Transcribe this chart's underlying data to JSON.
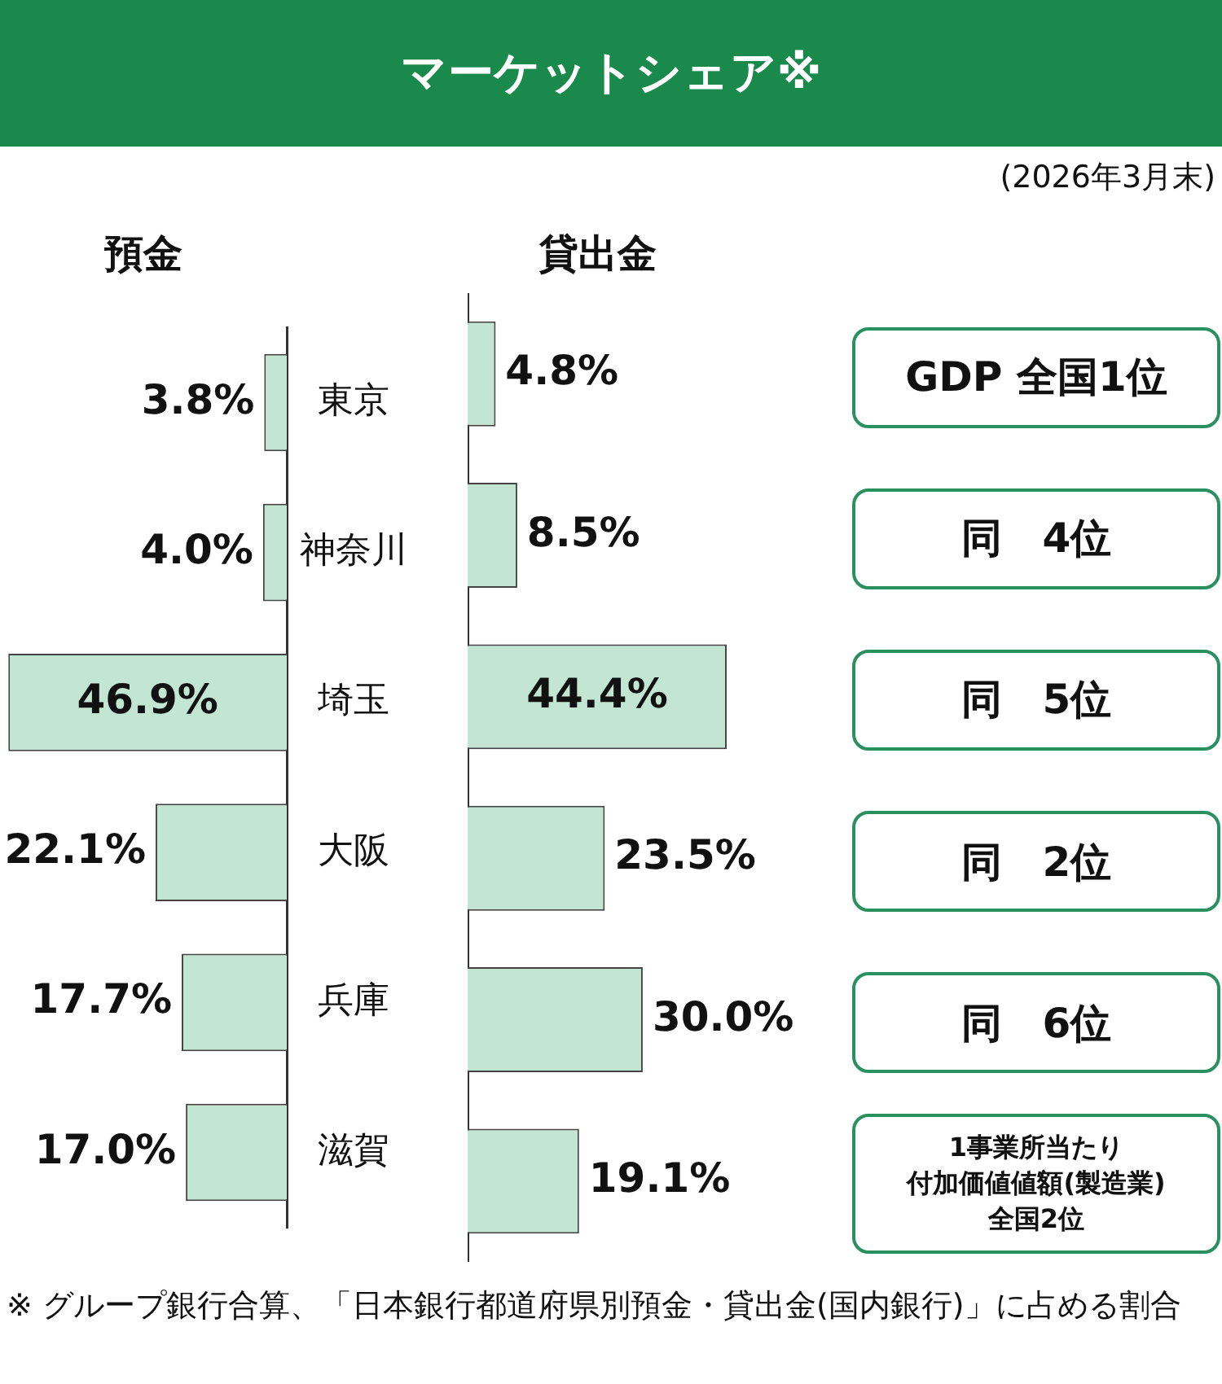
{
  "chart_data": [
    {
      "type": "bar",
      "orientation": "horizontal",
      "title": "預金",
      "categories": [
        "東京",
        "神奈川",
        "埼玉",
        "大阪",
        "兵庫",
        "滋賀"
      ],
      "values": [
        3.8,
        4.0,
        46.9,
        22.1,
        17.7,
        17.0
      ],
      "value_labels": [
        "3.8%",
        "4.0%",
        "46.9%",
        "22.1%",
        "17.7%",
        "17.0%"
      ],
      "color": "#c2e6d3",
      "tick_labels": "y",
      "grid": false,
      "legend": false,
      "annotations": [
        "マーケットシェア※",
        "(2026年3月末)",
        "※ グループ銀行合算、「日本銀行都道府県別預金・貸出金(国内銀行)」に占める割合"
      ]
    },
    {
      "type": "bar",
      "orientation": "horizontal",
      "title": "貸出金",
      "values": [
        4.8,
        8.5,
        44.4,
        23.5,
        30.0,
        19.1
      ],
      "value_labels": [
        "4.8%",
        "8.5%",
        "44.4%",
        "23.5%",
        "30.0%",
        "19.1%"
      ],
      "color": "#c2e6d3",
      "tick_labels": false,
      "grid": false,
      "legend": false
    },
    {
      "type": "other",
      "annotations": [
        "GDP 全国1位",
        "同　4位",
        "同　5位",
        "同　2位",
        "同　6位",
        "1事業所当たり",
        "付加価値値額(製造業)",
        "全国2位"
      ]
    }
  ]
}
